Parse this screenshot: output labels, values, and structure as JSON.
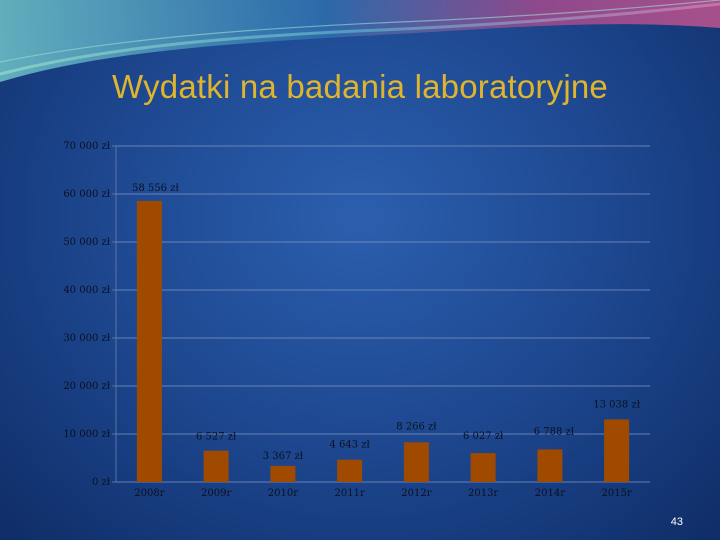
{
  "slide": {
    "title": "Wydatki na badania laboratoryjne",
    "page_number": "43",
    "title_color": "#e0b42c",
    "background_color": "#1f4a93"
  },
  "chart_data": {
    "type": "bar",
    "title": "",
    "xlabel": "",
    "ylabel": "",
    "categories": [
      "2008r",
      "2009r",
      "2010r",
      "2011r",
      "2012r",
      "2013r",
      "2014r",
      "2015r"
    ],
    "values": [
      58556,
      6527,
      3367,
      4643,
      8266,
      6027,
      6788,
      13038
    ],
    "value_labels": [
      "58 556 zł",
      "6 527 zł",
      "3 367 zł",
      "4 643 zł",
      "8 266 zł",
      "6 027 zł",
      "6 788 zł",
      "13 038 zł"
    ],
    "ylim": [
      0,
      70000
    ],
    "yticks": [
      0,
      10000,
      20000,
      30000,
      40000,
      50000,
      60000,
      70000
    ],
    "ytick_labels": [
      "0 zł",
      "10 000 zł",
      "20 000 zł",
      "30 000 zł",
      "40 000 zł",
      "50 000 zł",
      "60 000 zł",
      "70 000 zł"
    ],
    "grid": true,
    "legend": "none",
    "bar_color": "#a04a00"
  }
}
